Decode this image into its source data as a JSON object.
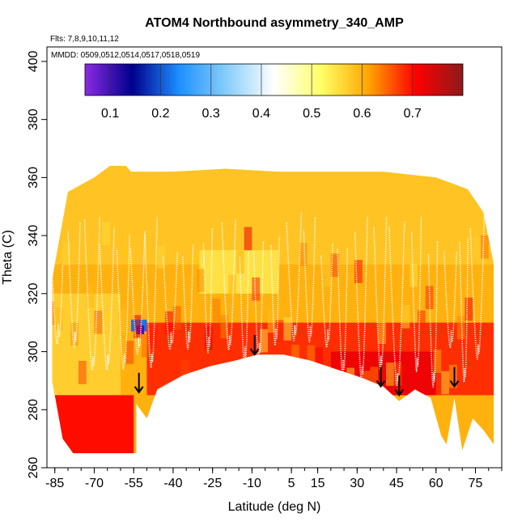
{
  "chart_data": {
    "type": "heatmap",
    "title": "ATOM4 Northbound asymmetry_340_AMP",
    "subtitle_flights": "Flts: 7,8,9,10,11,12",
    "subtitle_dates": "MMDD: 0509,0512,0514,0517,0518,0519",
    "xlabel": "Latitude (deg N)",
    "ylabel": "Theta (C)",
    "xlim": [
      -88,
      85
    ],
    "ylim": [
      260,
      405
    ],
    "x_ticks": [
      -85,
      -70,
      -55,
      -40,
      -25,
      -10,
      5,
      15,
      30,
      45,
      60,
      75
    ],
    "x_tick_labels": [
      "-85",
      "-70",
      "-55",
      "-40",
      "-25",
      "-10",
      "5",
      "15",
      "30",
      "45",
      "60",
      "75"
    ],
    "y_ticks": [
      260,
      280,
      300,
      320,
      340,
      360,
      380,
      400
    ],
    "y_tick_labels": [
      "260",
      "280",
      "300",
      "320",
      "340",
      "360",
      "380",
      "400"
    ],
    "colorbar": {
      "range": [
        0.05,
        0.8
      ],
      "ticks": [
        0.1,
        0.2,
        0.3,
        0.4,
        0.5,
        0.6,
        0.7
      ],
      "tick_labels": [
        "0.1",
        "0.2",
        "0.3",
        "0.4",
        "0.5",
        "0.6",
        "0.7"
      ],
      "colors": [
        "#8a2be2",
        "#00008b",
        "#1e90ff",
        "#87cefa",
        "#ffffff",
        "#ffff66",
        "#ffa500",
        "#ff0000",
        "#8b1a1a"
      ]
    },
    "arrow_latitudes": [
      -53,
      -9,
      39,
      46,
      67
    ],
    "arrow_theta": [
      286,
      299,
      288,
      285,
      288
    ],
    "domain_top": [
      {
        "lat": -86,
        "theta": 325
      },
      {
        "lat": -80,
        "theta": 355
      },
      {
        "lat": -70,
        "theta": 360
      },
      {
        "lat": -64,
        "theta": 364
      },
      {
        "lat": -58,
        "theta": 364
      },
      {
        "lat": -56,
        "theta": 362
      },
      {
        "lat": -40,
        "theta": 362
      },
      {
        "lat": -20,
        "theta": 363
      },
      {
        "lat": 0,
        "theta": 362
      },
      {
        "lat": 20,
        "theta": 362
      },
      {
        "lat": 40,
        "theta": 362
      },
      {
        "lat": 60,
        "theta": 360
      },
      {
        "lat": 72,
        "theta": 356
      },
      {
        "lat": 78,
        "theta": 348
      },
      {
        "lat": 82,
        "theta": 330
      }
    ],
    "domain_bottom": [
      {
        "lat": -86,
        "theta": 290
      },
      {
        "lat": -82,
        "theta": 270
      },
      {
        "lat": -78,
        "theta": 265
      },
      {
        "lat": -54,
        "theta": 265
      },
      {
        "lat": -54,
        "theta": 282
      },
      {
        "lat": -50,
        "theta": 277
      },
      {
        "lat": -46,
        "theta": 287
      },
      {
        "lat": -36,
        "theta": 292
      },
      {
        "lat": -26,
        "theta": 295
      },
      {
        "lat": -16,
        "theta": 297
      },
      {
        "lat": -8,
        "theta": 299
      },
      {
        "lat": 2,
        "theta": 299
      },
      {
        "lat": 12,
        "theta": 297
      },
      {
        "lat": 22,
        "theta": 294
      },
      {
        "lat": 32,
        "theta": 291
      },
      {
        "lat": 40,
        "theta": 288
      },
      {
        "lat": 46,
        "theta": 283
      },
      {
        "lat": 52,
        "theta": 287
      },
      {
        "lat": 58,
        "theta": 284
      },
      {
        "lat": 62,
        "theta": 271
      },
      {
        "lat": 64,
        "theta": 268
      },
      {
        "lat": 67,
        "theta": 284
      },
      {
        "lat": 70,
        "theta": 266
      },
      {
        "lat": 74,
        "theta": 277
      },
      {
        "lat": 78,
        "theta": 273
      },
      {
        "lat": 82,
        "theta": 268
      }
    ],
    "value_regions": [
      {
        "lat_range": [
          -86,
          82
        ],
        "theta_range": [
          260,
          365
        ],
        "value": 0.6
      },
      {
        "lat_range": [
          -86,
          82
        ],
        "theta_range": [
          330,
          365
        ],
        "value": 0.58
      },
      {
        "lat_range": [
          -30,
          0
        ],
        "theta_range": [
          320,
          335
        ],
        "value": 0.55
      },
      {
        "lat_range": [
          -86,
          -60
        ],
        "theta_range": [
          285,
          320
        ],
        "value": 0.57
      },
      {
        "lat_range": [
          -86,
          -55
        ],
        "theta_range": [
          265,
          285
        ],
        "value": 0.7
      },
      {
        "lat_range": [
          -50,
          82
        ],
        "theta_range": [
          285,
          310
        ],
        "value": 0.68
      },
      {
        "lat_range": [
          20,
          60
        ],
        "theta_range": [
          285,
          300
        ],
        "value": 0.72
      },
      {
        "lat_range": [
          -56,
          -50
        ],
        "theta_range": [
          307,
          311
        ],
        "value": 0.22
      },
      {
        "lat_range": [
          -54,
          -51
        ],
        "theta_range": [
          306,
          309
        ],
        "value": 0.1
      }
    ]
  }
}
